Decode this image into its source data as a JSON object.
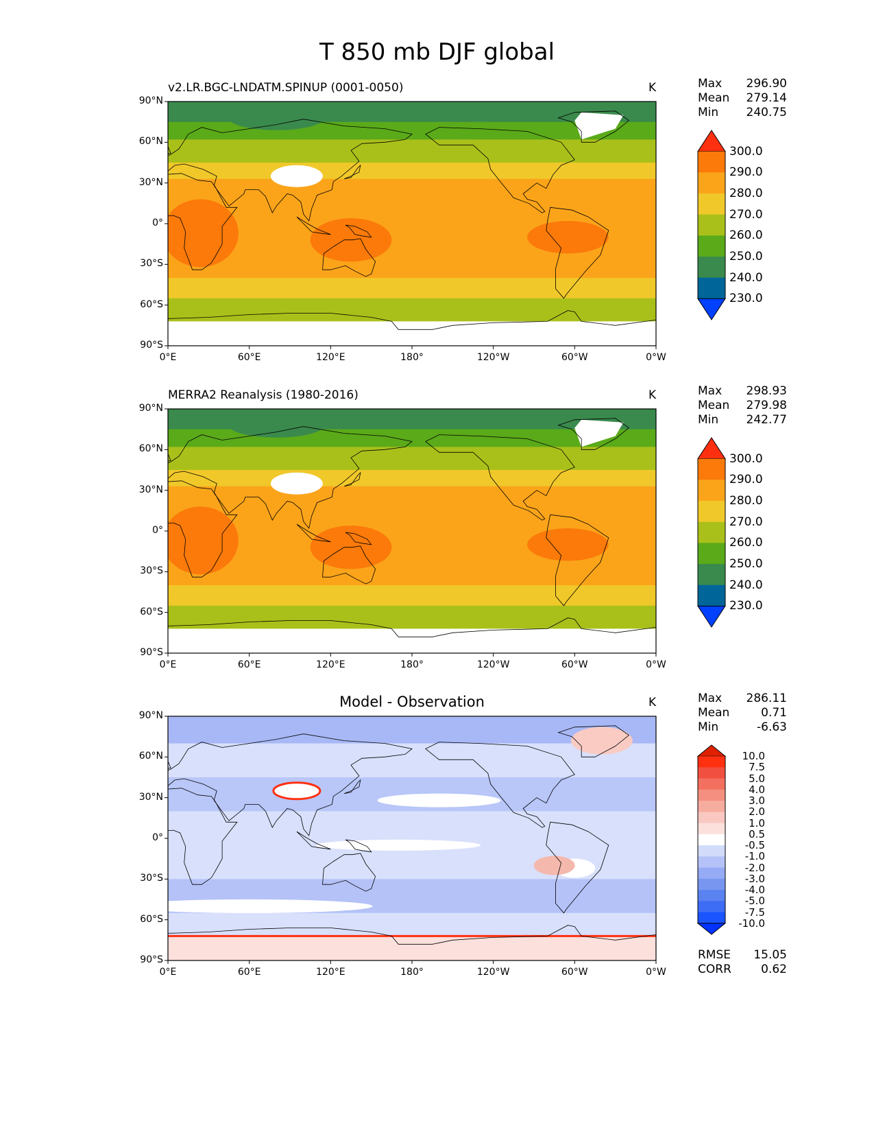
{
  "title": "T 850 mb DJF global",
  "panels": [
    {
      "left_label": "v2.LR.BGC-LNDATM.SPINUP (0001-0050)",
      "center_label": "",
      "units": "K",
      "stats": [
        {
          "key": "Max",
          "value": "296.90"
        },
        {
          "key": "Mean",
          "value": "279.14"
        },
        {
          "key": "Min",
          "value": "240.75"
        }
      ],
      "colorbar_labels": [
        "300.0",
        "290.0",
        "280.0",
        "270.0",
        "260.0",
        "250.0",
        "240.0",
        "230.0"
      ]
    },
    {
      "left_label": "MERRA2 Reanalysis (1980-2016)",
      "center_label": "",
      "units": "K",
      "stats": [
        {
          "key": "Max",
          "value": "298.93"
        },
        {
          "key": "Mean",
          "value": "279.98"
        },
        {
          "key": "Min",
          "value": "242.77"
        }
      ],
      "colorbar_labels": [
        "300.0",
        "290.0",
        "280.0",
        "270.0",
        "260.0",
        "250.0",
        "240.0",
        "230.0"
      ]
    },
    {
      "left_label": "",
      "center_label": "Model - Observation",
      "units": "K",
      "stats": [
        {
          "key": "Max",
          "value": "286.11"
        },
        {
          "key": "Mean",
          "value": "0.71"
        },
        {
          "key": "Min",
          "value": "-6.63"
        }
      ],
      "colorbar_labels": [
        "10.0",
        "7.5",
        "5.0",
        "4.0",
        "3.0",
        "2.0",
        "1.0",
        "0.5",
        "-0.5",
        "-1.0",
        "-2.0",
        "-3.0",
        "-4.0",
        "-5.0",
        "-7.5",
        "-10.0"
      ],
      "metrics": [
        {
          "key": "RMSE",
          "value": "15.05"
        },
        {
          "key": "CORR",
          "value": "0.62"
        }
      ]
    }
  ],
  "axes": {
    "lat_ticks": [
      "90°N",
      "60°N",
      "30°N",
      "0°",
      "30°S",
      "60°S",
      "90°S"
    ],
    "lon_ticks": [
      "0°E",
      "60°E",
      "120°E",
      "180°",
      "120°W",
      "60°W",
      "0°W"
    ]
  },
  "chart_data": [
    {
      "type": "heatmap",
      "title": "v2.LR.BGC-LNDATM.SPINUP (0001-0050)",
      "variable": "T 850 mb DJF",
      "units": "K",
      "xlim": [
        0,
        360
      ],
      "ylim": [
        -90,
        90
      ],
      "contour_levels": [
        230,
        240,
        250,
        260,
        270,
        280,
        290,
        300
      ],
      "colors": [
        "#0040ff",
        "#006699",
        "#3a8a4d",
        "#5aaa1a",
        "#aac01a",
        "#f0c82a",
        "#fba41a",
        "#fb7a0a",
        "#ff3010"
      ],
      "stats": {
        "max": 296.9,
        "mean": 279.14,
        "min": 240.75
      }
    },
    {
      "type": "heatmap",
      "title": "MERRA2 Reanalysis (1980-2016)",
      "variable": "T 850 mb DJF",
      "units": "K",
      "xlim": [
        0,
        360
      ],
      "ylim": [
        -90,
        90
      ],
      "contour_levels": [
        230,
        240,
        250,
        260,
        270,
        280,
        290,
        300
      ],
      "colors": [
        "#0040ff",
        "#006699",
        "#3a8a4d",
        "#5aaa1a",
        "#aac01a",
        "#f0c82a",
        "#fba41a",
        "#fb7a0a",
        "#ff3010"
      ],
      "stats": {
        "max": 298.93,
        "mean": 279.98,
        "min": 242.77
      }
    },
    {
      "type": "heatmap",
      "title": "Model - Observation",
      "variable": "T 850 mb DJF difference",
      "units": "K",
      "xlim": [
        0,
        360
      ],
      "ylim": [
        -90,
        90
      ],
      "contour_levels": [
        -10,
        -7.5,
        -5,
        -4,
        -3,
        -2,
        -1,
        -0.5,
        0.5,
        1,
        2,
        3,
        4,
        5,
        7.5,
        10
      ],
      "colors": [
        "#0033ff",
        "#1a55ff",
        "#3d6cf5",
        "#5a82f0",
        "#7896f0",
        "#96abf5",
        "#b4c2f8",
        "#d2dcfa",
        "#ffffff",
        "#fbe0dc",
        "#f9c8c0",
        "#f7aca0",
        "#f59080",
        "#f37060",
        "#f15040",
        "#ff3010",
        "#e02000"
      ],
      "stats": {
        "max": 286.11,
        "mean": 0.71,
        "min": -6.63
      },
      "rmse": 15.05,
      "corr": 0.62
    }
  ]
}
